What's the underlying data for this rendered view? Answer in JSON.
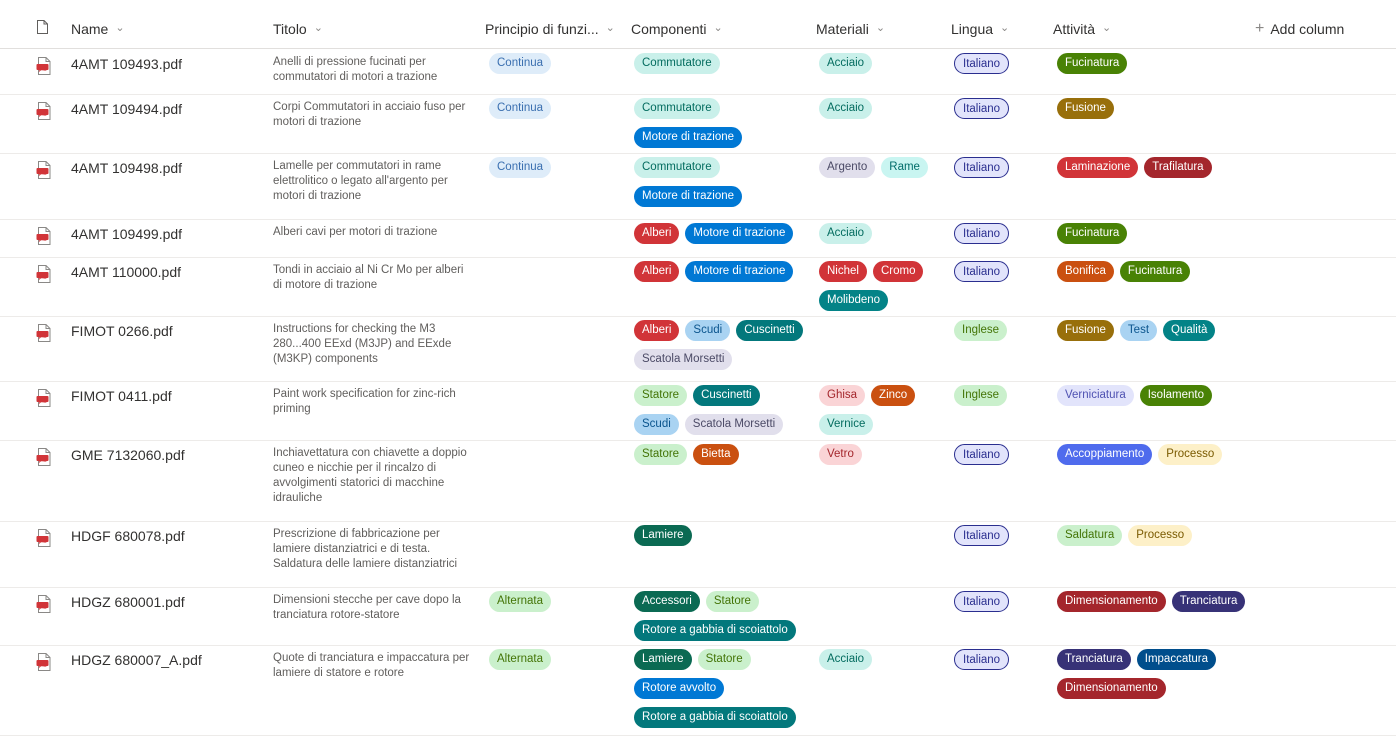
{
  "header": {
    "name": "Name",
    "titolo": "Titolo",
    "principio": "Principio di funzi...",
    "componenti": "Componenti",
    "materiali": "Materiali",
    "lingua": "Lingua",
    "attivita": "Attività",
    "add_column": "Add column"
  },
  "colors": {
    "Continua": [
      "#deecf9",
      "#3a6fb0"
    ],
    "Alternata": [
      "#caf0cc",
      "#437406"
    ],
    "Commutatore": [
      "#c9f0ea",
      "#036c5f"
    ],
    "Motore di trazione": [
      "#0078d4",
      "#ffffff"
    ],
    "Alberi": [
      "#d13438",
      "#ffffff"
    ],
    "Scudi": [
      "#a9d3f2",
      "#0b558e"
    ],
    "Cuscinetti": [
      "#03787c",
      "#ffffff"
    ],
    "Scatola Morsetti": [
      "#e1dfec",
      "#4b4a66"
    ],
    "Statore": [
      "#caf0cc",
      "#437406"
    ],
    "Bietta": [
      "#ca5010",
      "#ffffff"
    ],
    "Lamiere": [
      "#0b6a53",
      "#ffffff"
    ],
    "Accessori": [
      "#0b6a53",
      "#ffffff"
    ],
    "Rotore a gabbia di scoiattolo": [
      "#03787c",
      "#ffffff"
    ],
    "Rotore avvolto": [
      "#0078d4",
      "#ffffff"
    ],
    "Acciaio": [
      "#c9f0ea",
      "#036c5f"
    ],
    "Argento": [
      "#e1dfec",
      "#4b4a66"
    ],
    "Rame": [
      "#c9f5f1",
      "#016d6a"
    ],
    "Nichel": [
      "#d13438",
      "#ffffff"
    ],
    "Cromo": [
      "#d13438",
      "#ffffff"
    ],
    "Molibdeno": [
      "#038387",
      "#ffffff"
    ],
    "Ghisa": [
      "#fad4d6",
      "#a4262c"
    ],
    "Zinco": [
      "#ca5010",
      "#ffffff"
    ],
    "Vernice": [
      "#c9f0ea",
      "#036c5f"
    ],
    "Vetro": [
      "#fad4d6",
      "#a4262c"
    ],
    "Italiano": [
      "#e2e4fb",
      "#2a2e8f",
      "#2a2e8f"
    ],
    "Inglese": [
      "#caf0cc",
      "#437406"
    ],
    "Fucinatura": [
      "#498205",
      "#ffffff"
    ],
    "Fusione": [
      "#986f0b",
      "#ffffff"
    ],
    "Laminazione": [
      "#d13438",
      "#ffffff"
    ],
    "Trafilatura": [
      "#a4262c",
      "#ffffff"
    ],
    "Bonifica": [
      "#ca5010",
      "#ffffff"
    ],
    "Test": [
      "#a9d3f2",
      "#0b558e"
    ],
    "Qualità": [
      "#038387",
      "#ffffff"
    ],
    "Verniciatura": [
      "#e2e4fb",
      "#4f52b2"
    ],
    "Isolamento": [
      "#498205",
      "#ffffff"
    ],
    "Accoppiamento": [
      "#4f6bed",
      "#ffffff"
    ],
    "Processo": [
      "#fdf0c8",
      "#7a5a00"
    ],
    "Saldatura": [
      "#caf0cc",
      "#437406"
    ],
    "Dimensionamento": [
      "#a4262c",
      "#ffffff"
    ],
    "Tranciatura": [
      "#373277",
      "#ffffff"
    ],
    "Impaccatura": [
      "#004e8c",
      "#ffffff"
    ]
  },
  "rows": [
    {
      "name": "4AMT 109493.pdf",
      "titolo": "Anelli di pressione fucinati per commutatori di motori a trazione",
      "principio": [
        "Continua"
      ],
      "componenti": [
        "Commutatore"
      ],
      "materiali": [
        "Acciaio"
      ],
      "lingua": [
        "Italiano"
      ],
      "attivita": [
        "Fucinatura"
      ]
    },
    {
      "name": "4AMT 109494.pdf",
      "titolo": "Corpi Commutatori in acciaio fuso per motori di trazione",
      "principio": [
        "Continua"
      ],
      "componenti": [
        "Commutatore",
        "Motore di trazione"
      ],
      "materiali": [
        "Acciaio"
      ],
      "lingua": [
        "Italiano"
      ],
      "attivita": [
        "Fusione"
      ]
    },
    {
      "name": "4AMT 109498.pdf",
      "titolo": "Lamelle per commutatori in rame elettrolitico o legato all'argento per motori di trazione",
      "principio": [
        "Continua"
      ],
      "componenti": [
        "Commutatore",
        "Motore di trazione"
      ],
      "materiali": [
        "Argento",
        "Rame"
      ],
      "lingua": [
        "Italiano"
      ],
      "attivita": [
        "Laminazione",
        "Trafilatura"
      ]
    },
    {
      "name": "4AMT 109499.pdf",
      "titolo": "Alberi cavi per motori di trazione",
      "principio": [],
      "componenti": [
        "Alberi",
        "Motore di trazione"
      ],
      "materiali": [
        "Acciaio"
      ],
      "lingua": [
        "Italiano"
      ],
      "attivita": [
        "Fucinatura"
      ]
    },
    {
      "name": "4AMT 110000.pdf",
      "titolo": "Tondi in acciaio al Ni Cr Mo per alberi di motore di trazione",
      "principio": [],
      "componenti": [
        "Alberi",
        "Motore di trazione"
      ],
      "materiali": [
        "Nichel",
        "Cromo",
        "Molibdeno"
      ],
      "lingua": [
        "Italiano"
      ],
      "attivita": [
        "Bonifica",
        "Fucinatura"
      ]
    },
    {
      "name": "FIMOT 0266.pdf",
      "titolo": "Instructions for checking the M3 280...400 EExd (M3JP) and EExde (M3KP) components",
      "principio": [],
      "componenti": [
        "Alberi",
        "Scudi",
        "Cuscinetti",
        "Scatola Morsetti"
      ],
      "materiali": [],
      "lingua": [
        "Inglese"
      ],
      "attivita": [
        "Fusione",
        "Test",
        "Qualità"
      ]
    },
    {
      "name": "FIMOT 0411.pdf",
      "titolo": "Paint work specification for zinc-rich priming",
      "principio": [],
      "componenti": [
        "Statore",
        "Cuscinetti",
        "Scudi",
        "Scatola Morsetti"
      ],
      "materiali": [
        "Ghisa",
        "Zinco",
        "Vernice"
      ],
      "lingua": [
        "Inglese"
      ],
      "attivita": [
        "Verniciatura",
        "Isolamento"
      ]
    },
    {
      "name": "GME 7132060.pdf",
      "titolo": "Inchiavettatura con chiavette a doppio cuneo e nicchie per il rincalzo di avvolgimenti statorici di macchine idrauliche",
      "principio": [],
      "componenti": [
        "Statore",
        "Bietta"
      ],
      "materiali": [
        "Vetro"
      ],
      "lingua": [
        "Italiano"
      ],
      "attivita": [
        "Accoppiamento",
        "Processo"
      ]
    },
    {
      "name": "HDGF 680078.pdf",
      "titolo": "Prescrizione di fabbricazione per lamiere distanziatrici e di testa. Saldatura delle lamiere distanziatrici",
      "principio": [],
      "componenti": [
        "Lamiere"
      ],
      "materiali": [],
      "lingua": [
        "Italiano"
      ],
      "attivita": [
        "Saldatura",
        "Processo"
      ]
    },
    {
      "name": "HDGZ 680001.pdf",
      "titolo": "Dimensioni stecche per cave dopo la tranciatura rotore-statore",
      "principio": [
        "Alternata"
      ],
      "componenti": [
        "Accessori",
        "Statore",
        "Rotore a gabbia di scoiattolo"
      ],
      "materiali": [],
      "lingua": [
        "Italiano"
      ],
      "attivita": [
        "Dimensionamento",
        "Tranciatura"
      ]
    },
    {
      "name": "HDGZ 680007_A.pdf",
      "titolo": "Quote di tranciatura e impaccatura per lamiere di statore e rotore",
      "principio": [
        "Alternata"
      ],
      "componenti": [
        "Lamiere",
        "Statore",
        "Rotore avvolto",
        "Rotore a gabbia di scoiattolo"
      ],
      "materiali": [
        "Acciaio"
      ],
      "lingua": [
        "Italiano"
      ],
      "attivita": [
        "Tranciatura",
        "Impaccatura",
        "Dimensionamento"
      ]
    }
  ]
}
